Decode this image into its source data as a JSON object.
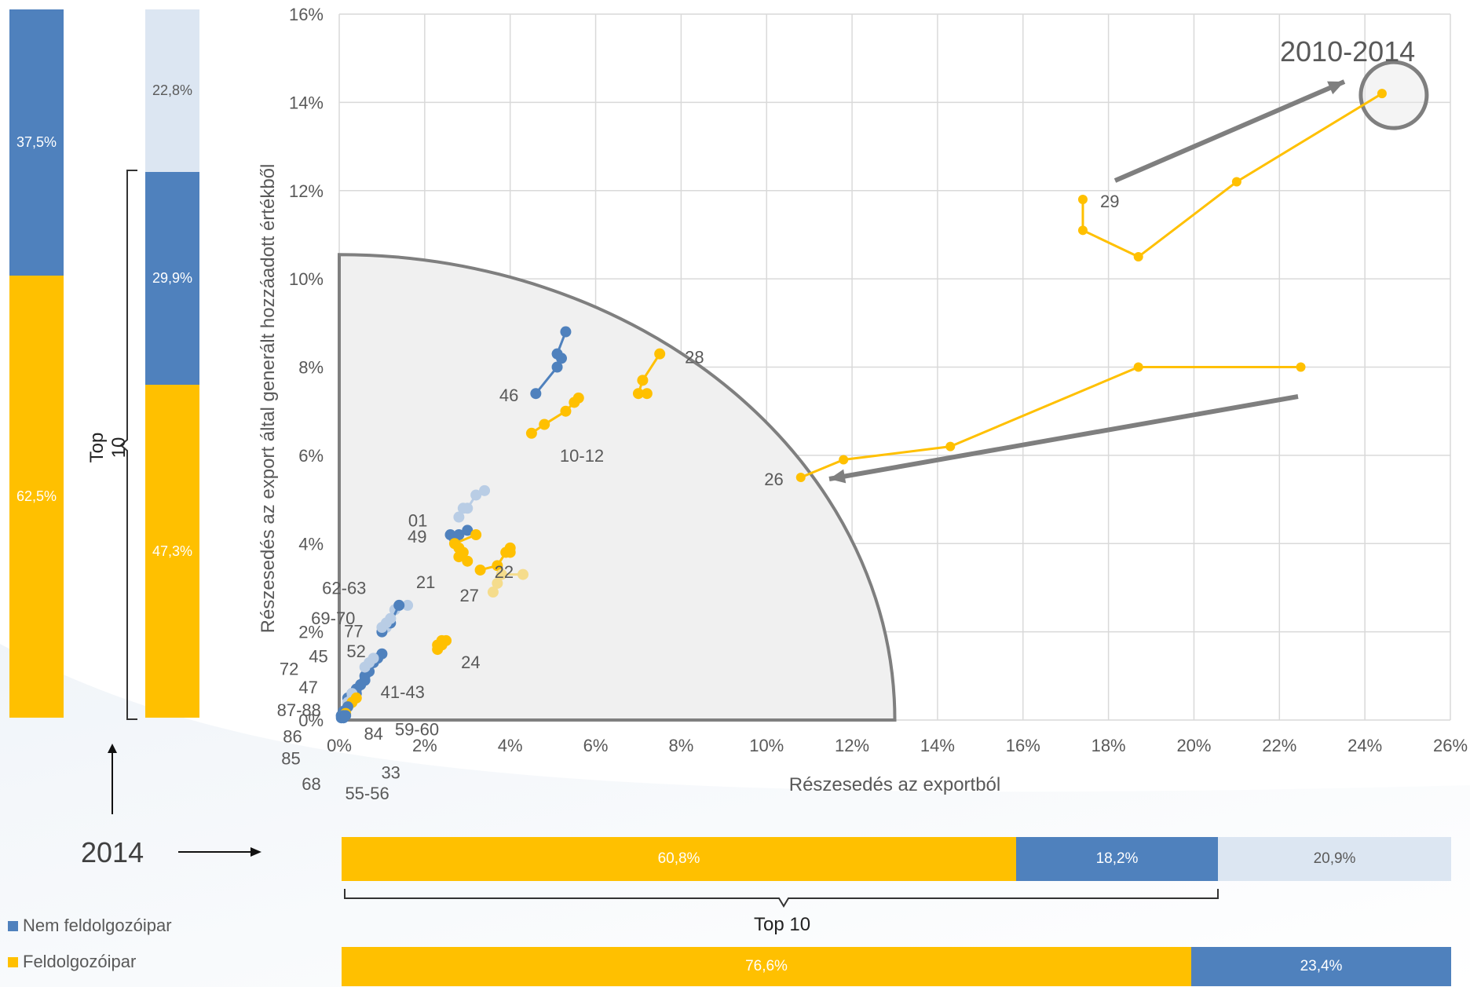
{
  "colors": {
    "manufacturing": "#FFC000",
    "non_manufacturing": "#4F81BD",
    "other": "#DCE6F2",
    "highlight_region": "#F0F0F0",
    "arrow": "#7F7F7F"
  },
  "bar_2010": {
    "other": "",
    "non_manufacturing": "37,5%",
    "manufacturing": "62,5%"
  },
  "bar_2014": {
    "other": "22,8%",
    "non_manufacturing": "29,9%",
    "manufacturing": "47,3%"
  },
  "top10_vertical_label": "Top 10",
  "top10_horizontal_label": "Top 10",
  "year_label": "2014",
  "hbar_2014_all": {
    "manufacturing": "60,8%",
    "non_manufacturing": "18,2%",
    "other": "20,9%"
  },
  "hbar_2014_top10": {
    "manufacturing": "76,6%",
    "non_manufacturing": "23,4%"
  },
  "legend": {
    "non_manufacturing": "Nem feldolgozóipar",
    "manufacturing": "Feldolgozóipar"
  },
  "period_label": "2010-2014",
  "chart_data": {
    "type": "scatter",
    "xlabel": "Részesedés  az exportból",
    "ylabel": "Részesedés  az export által generált hozzáadott értékből",
    "xlim": [
      0,
      26
    ],
    "ylim": [
      0,
      16
    ],
    "x_ticks": [
      "0%",
      "2%",
      "4%",
      "6%",
      "8%",
      "10%",
      "12%",
      "14%",
      "16%",
      "18%",
      "20%",
      "22%",
      "24%",
      "26%"
    ],
    "y_ticks": [
      "0%",
      "2%",
      "4%",
      "6%",
      "8%",
      "10%",
      "12%",
      "14%",
      "16%"
    ],
    "grid": true,
    "series": [
      {
        "name": "29",
        "group": "manufacturing",
        "x": [
          17.4,
          17.4,
          18.7,
          21.0,
          24.4
        ],
        "y": [
          11.8,
          11.1,
          10.5,
          12.2,
          14.2
        ]
      },
      {
        "name": "26",
        "group": "manufacturing",
        "x": [
          10.8,
          11.8,
          14.3,
          18.7,
          22.5
        ],
        "y": [
          5.5,
          5.9,
          6.2,
          8.0,
          8.0
        ]
      },
      {
        "name": "28",
        "group": "manufacturing",
        "x": [
          7.5,
          7.1,
          7.0,
          7.2
        ],
        "y": [
          8.3,
          7.7,
          7.4,
          7.4
        ]
      },
      {
        "name": "10-12",
        "group": "manufacturing",
        "x": [
          4.5,
          4.8,
          5.3,
          5.5,
          5.6
        ],
        "y": [
          6.5,
          6.7,
          7.0,
          7.2,
          7.3
        ]
      },
      {
        "name": "46",
        "group": "non_manufacturing",
        "x": [
          4.6,
          5.1,
          5.2,
          5.1,
          5.3
        ],
        "y": [
          7.4,
          8.0,
          8.2,
          8.3,
          8.8
        ]
      },
      {
        "name": "01",
        "group": "other",
        "x": [
          2.8,
          2.9,
          3.0,
          3.2,
          3.4
        ],
        "y": [
          4.6,
          4.8,
          4.8,
          5.1,
          5.2
        ]
      },
      {
        "name": "49",
        "group": "non_manufacturing",
        "x": [
          2.6,
          2.7,
          2.8,
          3.0
        ],
        "y": [
          4.2,
          4.1,
          4.2,
          4.3
        ]
      },
      {
        "name": "21",
        "group": "manufacturing",
        "x": [
          2.8,
          2.9,
          3.0,
          2.8,
          2.7,
          3.2
        ],
        "y": [
          3.7,
          3.8,
          3.6,
          3.9,
          4.0,
          4.2
        ]
      },
      {
        "name": "22",
        "group": "manufacturing",
        "x": [
          3.3,
          3.7,
          3.9,
          4.0,
          4.0
        ],
        "y": [
          3.4,
          3.5,
          3.8,
          3.8,
          3.9
        ]
      },
      {
        "name": "27",
        "group": "manufacturing_light",
        "x": [
          3.6,
          3.7,
          3.8,
          4.3
        ],
        "y": [
          2.9,
          3.1,
          3.3,
          3.3
        ]
      },
      {
        "name": "24",
        "group": "manufacturing",
        "x": [
          2.3,
          2.3,
          2.4,
          2.5,
          2.4
        ],
        "y": [
          1.6,
          1.7,
          1.8,
          1.8,
          1.7
        ]
      },
      {
        "name": "52",
        "group": "other",
        "x": [
          1.1,
          1.2,
          1.3,
          1.4,
          1.6
        ],
        "y": [
          2.1,
          2.3,
          2.5,
          2.6,
          2.6
        ]
      },
      {
        "name": "62-63",
        "group": "non_manufacturing",
        "x": [
          1.0,
          1.2,
          1.4
        ],
        "y": [
          2.0,
          2.2,
          2.6
        ]
      },
      {
        "name": "69-70",
        "group": "other",
        "x": [
          1.0,
          1.1,
          1.2
        ],
        "y": [
          2.1,
          2.2,
          2.3
        ]
      },
      {
        "name": "41-43",
        "group": "non_manufacturing",
        "x": [
          0.6,
          0.7,
          0.8,
          0.9,
          1.0
        ],
        "y": [
          1.0,
          1.1,
          1.3,
          1.4,
          1.5
        ]
      },
      {
        "name": "77",
        "group": "other",
        "x": [
          0.6,
          0.7,
          0.8
        ],
        "y": [
          1.2,
          1.3,
          1.4
        ]
      },
      {
        "name": "45",
        "group": "non_manufacturing",
        "x": [
          0.4,
          0.5,
          0.6
        ],
        "y": [
          0.7,
          0.8,
          0.9
        ]
      },
      {
        "name": "72",
        "group": "non_manufacturing",
        "x": [
          0.3,
          0.4,
          0.5
        ],
        "y": [
          0.6,
          0.7,
          0.8
        ]
      },
      {
        "name": "47",
        "group": "non_manufacturing",
        "x": [
          0.2,
          0.3,
          0.4
        ],
        "y": [
          0.5,
          0.6,
          0.6
        ]
      },
      {
        "name": "59-60",
        "group": "other",
        "x": [
          0.2,
          0.3,
          0.3
        ],
        "y": [
          0.4,
          0.5,
          0.6
        ]
      },
      {
        "name": "87-88",
        "group": "manufacturing",
        "x": [
          0.2,
          0.3,
          0.4
        ],
        "y": [
          0.3,
          0.4,
          0.5
        ]
      },
      {
        "name": "84",
        "group": "non_manufacturing",
        "x": [
          0.1,
          0.2
        ],
        "y": [
          0.2,
          0.3
        ]
      },
      {
        "name": "86",
        "group": "non_manufacturing",
        "x": [
          0.05,
          0.1
        ],
        "y": [
          0.1,
          0.15
        ]
      },
      {
        "name": "85",
        "group": "non_manufacturing",
        "x": [
          0.05,
          0.1
        ],
        "y": [
          0.1,
          0.1
        ]
      },
      {
        "name": "33",
        "group": "manufacturing",
        "x": [
          0.1,
          0.15
        ],
        "y": [
          0.1,
          0.15
        ]
      },
      {
        "name": "68",
        "group": "non_manufacturing",
        "x": [
          0.05,
          0.1
        ],
        "y": [
          0.05,
          0.1
        ]
      },
      {
        "name": "55-56",
        "group": "non_manufacturing",
        "x": [
          0.1,
          0.15
        ],
        "y": [
          0.05,
          0.1
        ]
      }
    ]
  }
}
